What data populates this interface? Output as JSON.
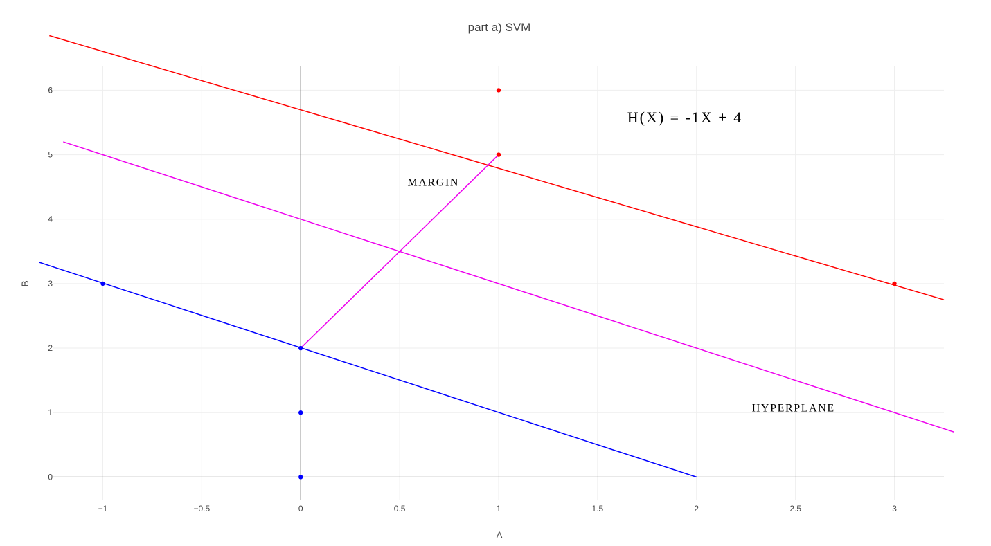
{
  "chart_data": {
    "type": "scatter",
    "title": "part a) SVM",
    "xlabel": "A",
    "ylabel": "B",
    "xlim": [
      -1.25,
      3.25
    ],
    "ylim": [
      -0.35,
      6.38
    ],
    "x_ticks": [
      -1,
      -0.5,
      0,
      0.5,
      1,
      1.5,
      2,
      2.5,
      3
    ],
    "x_tick_labels": [
      "−1",
      "−0.5",
      "0",
      "0.5",
      "1",
      "1.5",
      "2",
      "2.5",
      "3"
    ],
    "y_ticks": [
      0,
      1,
      2,
      3,
      4,
      5,
      6
    ],
    "y_tick_labels": [
      "0",
      "1",
      "2",
      "3",
      "4",
      "5",
      "6"
    ],
    "grid": true,
    "zero_lines": true,
    "series": [
      {
        "kind": "line",
        "color": "#ff0000",
        "x": [
          -1.27,
          3.25
        ],
        "y": [
          6.847,
          2.75
        ]
      },
      {
        "kind": "line",
        "color": "#ee00ee",
        "x": [
          -1.2,
          3.3
        ],
        "y": [
          5.2,
          0.7
        ]
      },
      {
        "kind": "line",
        "color": "#0000ff",
        "x": [
          -1.32,
          2
        ],
        "y": [
          3.33,
          0
        ]
      },
      {
        "kind": "line",
        "color": "#ee00ee",
        "x": [
          0,
          1
        ],
        "y": [
          2,
          5
        ]
      },
      {
        "kind": "markers",
        "color": "#ff0000",
        "x": [
          1,
          1,
          3
        ],
        "y": [
          6,
          5,
          3
        ]
      },
      {
        "kind": "markers",
        "color": "#0000ff",
        "x": [
          -1,
          0,
          0,
          0
        ],
        "y": [
          3,
          2,
          1,
          0
        ]
      }
    ],
    "annotations": [
      {
        "text": "H(X) = -1X + 4",
        "x": 1.65,
        "y": 5.5,
        "size": 22
      },
      {
        "text": "MARGIN",
        "x": 0.54,
        "y": 4.52,
        "size": 16
      },
      {
        "text": "HYPERPLANE",
        "x": 2.28,
        "y": 1.02,
        "size": 16
      }
    ]
  }
}
